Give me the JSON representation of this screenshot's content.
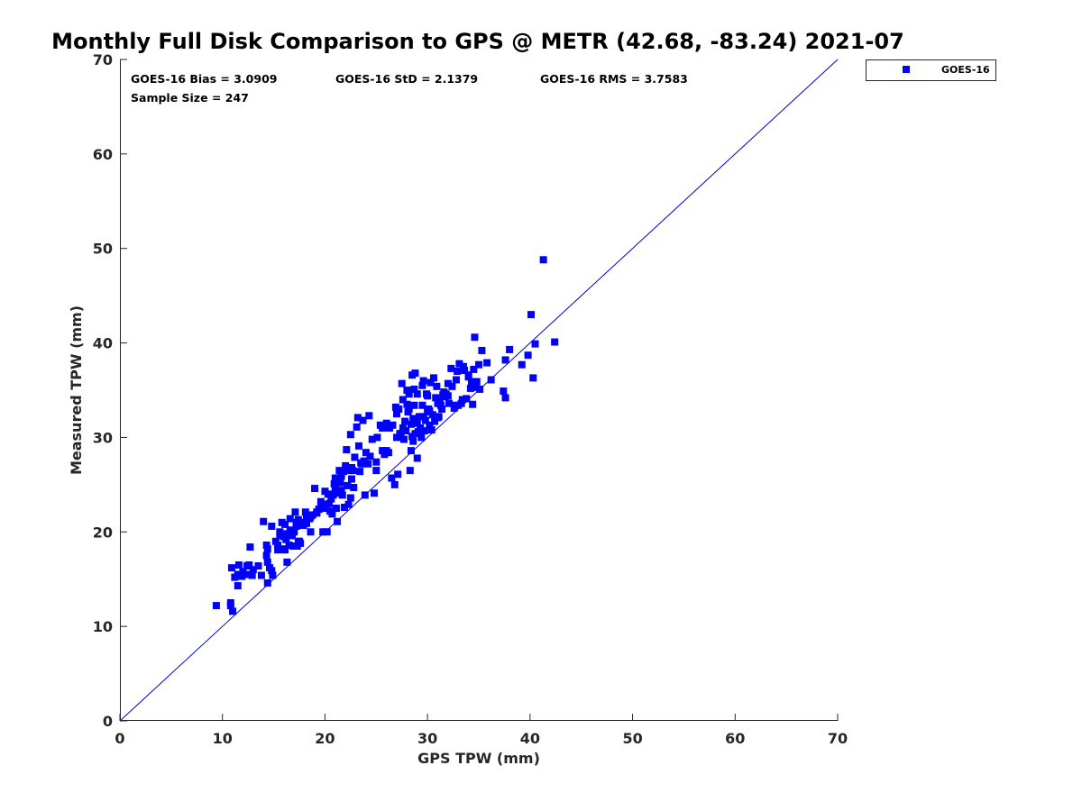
{
  "chart_data": {
    "type": "scatter",
    "title": "Monthly Full Disk Comparison to GPS @ METR (42.68, -83.24) 2021-07",
    "xlabel": "GPS TPW (mm)",
    "ylabel": "Measured TPW (mm)",
    "xlim": [
      0,
      70
    ],
    "ylim": [
      0,
      70
    ],
    "xticks": [
      "0",
      "10",
      "20",
      "30",
      "40",
      "50",
      "60",
      "70"
    ],
    "yticks": [
      "0",
      "10",
      "20",
      "30",
      "40",
      "50",
      "60",
      "70"
    ],
    "grid": false,
    "legend_position": "outside-top-right",
    "reference_line": {
      "x": [
        0,
        70
      ],
      "y": [
        0,
        70
      ],
      "color": "#0000cc"
    },
    "stats": {
      "bias": "GOES-16 Bias = 3.0909",
      "std": "GOES-16 StD = 2.1379",
      "rms": "GOES-16 RMS = 3.7583",
      "sample": "Sample Size = 247"
    },
    "series": [
      {
        "name": "GOES-16",
        "color": "#0000ff",
        "marker": "square",
        "points": [
          [
            9.4,
            12.2
          ],
          [
            10.8,
            12.5
          ],
          [
            10.8,
            12.2
          ],
          [
            11.0,
            11.6
          ],
          [
            11.5,
            14.3
          ],
          [
            11.5,
            15.5
          ],
          [
            11.6,
            16.5
          ],
          [
            11.9,
            15.3
          ],
          [
            10.9,
            16.2
          ],
          [
            12.4,
            16.4
          ],
          [
            12.6,
            16.5
          ],
          [
            12.4,
            15.5
          ],
          [
            12.9,
            15.4
          ],
          [
            12.7,
            18.4
          ],
          [
            13.5,
            16.4
          ],
          [
            13.8,
            15.4
          ],
          [
            14.0,
            21.1
          ],
          [
            14.3,
            17.5
          ],
          [
            14.3,
            18.6
          ],
          [
            14.4,
            18.2
          ],
          [
            14.4,
            16.8
          ],
          [
            14.6,
            16.2
          ],
          [
            14.4,
            14.6
          ],
          [
            14.8,
            15.9
          ],
          [
            14.9,
            15.4
          ],
          [
            14.8,
            20.6
          ],
          [
            15.4,
            18.6
          ],
          [
            15.4,
            18.1
          ],
          [
            15.8,
            18.2
          ],
          [
            15.6,
            20.0
          ],
          [
            15.8,
            21.0
          ],
          [
            16.1,
            20.8
          ],
          [
            16.0,
            19.5
          ],
          [
            16.1,
            18.1
          ],
          [
            16.3,
            19.8
          ],
          [
            16.3,
            16.8
          ],
          [
            16.5,
            18.6
          ],
          [
            16.6,
            21.4
          ],
          [
            16.8,
            19.6
          ],
          [
            16.9,
            18.5
          ],
          [
            17.0,
            20.0
          ],
          [
            17.1,
            22.1
          ],
          [
            17.2,
            21.0
          ],
          [
            17.3,
            18.5
          ],
          [
            17.4,
            21.3
          ],
          [
            17.5,
            19.0
          ],
          [
            17.6,
            18.8
          ],
          [
            17.8,
            20.9
          ],
          [
            17.9,
            20.7
          ],
          [
            18.1,
            22.1
          ],
          [
            18.2,
            21.7
          ],
          [
            18.2,
            20.9
          ],
          [
            18.5,
            21.4
          ],
          [
            18.6,
            20.0
          ],
          [
            18.8,
            21.8
          ],
          [
            19.0,
            24.6
          ],
          [
            19.2,
            22.1
          ],
          [
            19.4,
            22.4
          ],
          [
            19.6,
            22.8
          ],
          [
            19.8,
            22.5
          ],
          [
            19.8,
            20.0
          ],
          [
            20.0,
            24.3
          ],
          [
            20.0,
            22.5
          ],
          [
            20.1,
            22.9
          ],
          [
            20.2,
            20.0
          ],
          [
            20.3,
            24.0
          ],
          [
            20.5,
            22.2
          ],
          [
            20.6,
            23.5
          ],
          [
            20.7,
            21.9
          ],
          [
            20.8,
            23.9
          ],
          [
            20.9,
            25.1
          ],
          [
            21.0,
            25.7
          ],
          [
            21.1,
            22.5
          ],
          [
            21.2,
            21.1
          ],
          [
            21.3,
            24.1
          ],
          [
            21.4,
            26.5
          ],
          [
            21.5,
            25.2
          ],
          [
            21.6,
            25.9
          ],
          [
            21.7,
            23.9
          ],
          [
            21.8,
            26.4
          ],
          [
            21.9,
            22.6
          ],
          [
            22.0,
            27.0
          ],
          [
            22.1,
            28.7
          ],
          [
            22.2,
            24.9
          ],
          [
            22.3,
            22.9
          ],
          [
            22.4,
            26.5
          ],
          [
            22.5,
            23.6
          ],
          [
            22.5,
            30.3
          ],
          [
            22.6,
            26.8
          ],
          [
            22.7,
            26.5
          ],
          [
            22.8,
            24.7
          ],
          [
            22.9,
            27.9
          ],
          [
            23.1,
            31.1
          ],
          [
            23.2,
            32.1
          ],
          [
            23.3,
            29.1
          ],
          [
            23.5,
            27.3
          ],
          [
            23.6,
            27.2
          ],
          [
            23.7,
            31.8
          ],
          [
            23.8,
            27.5
          ],
          [
            23.9,
            23.9
          ],
          [
            24.0,
            28.4
          ],
          [
            24.3,
            32.3
          ],
          [
            24.6,
            29.8
          ],
          [
            24.8,
            24.1
          ],
          [
            25.0,
            26.5
          ],
          [
            25.0,
            27.4
          ],
          [
            25.1,
            30.0
          ],
          [
            25.4,
            31.3
          ],
          [
            25.6,
            31.0
          ],
          [
            25.8,
            28.2
          ],
          [
            26.0,
            31.5
          ],
          [
            26.1,
            31.2
          ],
          [
            26.2,
            28.4
          ],
          [
            26.3,
            31.0
          ],
          [
            26.5,
            25.7
          ],
          [
            26.6,
            31.3
          ],
          [
            26.8,
            25.0
          ],
          [
            26.9,
            33.2
          ],
          [
            27.0,
            30.0
          ],
          [
            27.0,
            32.5
          ],
          [
            27.1,
            26.1
          ],
          [
            27.2,
            33.0
          ],
          [
            27.3,
            30.4
          ],
          [
            27.5,
            35.7
          ],
          [
            27.6,
            31.0
          ],
          [
            27.7,
            29.8
          ],
          [
            27.8,
            31.7
          ],
          [
            27.9,
            30.7
          ],
          [
            28.0,
            33.5
          ],
          [
            28.0,
            35.0
          ],
          [
            28.1,
            32.7
          ],
          [
            28.2,
            34.6
          ],
          [
            28.3,
            26.5
          ],
          [
            28.4,
            28.6
          ],
          [
            28.4,
            31.4
          ],
          [
            28.5,
            36.6
          ],
          [
            28.5,
            30.1
          ],
          [
            28.6,
            32.0
          ],
          [
            28.7,
            33.4
          ],
          [
            28.7,
            35.1
          ],
          [
            28.8,
            30.4
          ],
          [
            28.8,
            36.8
          ],
          [
            28.9,
            31.5
          ],
          [
            29.0,
            27.8
          ],
          [
            29.0,
            31.7
          ],
          [
            29.1,
            30.6
          ],
          [
            29.2,
            32.2
          ],
          [
            29.3,
            31.0
          ],
          [
            29.4,
            30.0
          ],
          [
            29.5,
            35.5
          ],
          [
            29.5,
            33.4
          ],
          [
            29.6,
            36.0
          ],
          [
            29.7,
            30.7
          ],
          [
            29.8,
            31.8
          ],
          [
            29.9,
            34.6
          ],
          [
            30.0,
            32.7
          ],
          [
            30.1,
            33.0
          ],
          [
            30.2,
            31.3
          ],
          [
            30.3,
            35.8
          ],
          [
            30.4,
            30.8
          ],
          [
            30.5,
            32.4
          ],
          [
            30.6,
            36.3
          ],
          [
            30.7,
            31.7
          ],
          [
            30.8,
            34.2
          ],
          [
            30.9,
            35.4
          ],
          [
            31.0,
            33.6
          ],
          [
            31.0,
            32.1
          ],
          [
            31.1,
            32.2
          ],
          [
            31.3,
            33.4
          ],
          [
            31.4,
            33.0
          ],
          [
            31.5,
            34.5
          ],
          [
            31.6,
            34.8
          ],
          [
            31.7,
            34.3
          ],
          [
            31.8,
            34.6
          ],
          [
            32.0,
            35.7
          ],
          [
            32.1,
            33.6
          ],
          [
            32.3,
            37.3
          ],
          [
            32.4,
            35.4
          ],
          [
            32.6,
            33.1
          ],
          [
            32.7,
            33.4
          ],
          [
            32.8,
            36.1
          ],
          [
            32.9,
            37.0
          ],
          [
            33.0,
            33.4
          ],
          [
            33.1,
            37.8
          ],
          [
            33.3,
            33.6
          ],
          [
            33.5,
            37.5
          ],
          [
            33.6,
            37.1
          ],
          [
            33.8,
            34.1
          ],
          [
            34.0,
            36.4
          ],
          [
            34.2,
            35.2
          ],
          [
            34.3,
            35.9
          ],
          [
            34.4,
            33.5
          ],
          [
            34.5,
            37.2
          ],
          [
            34.6,
            40.6
          ],
          [
            34.7,
            35.3
          ],
          [
            34.8,
            35.9
          ],
          [
            35.0,
            37.7
          ],
          [
            35.1,
            35.1
          ],
          [
            35.3,
            39.2
          ],
          [
            35.8,
            37.9
          ],
          [
            36.2,
            36.1
          ],
          [
            37.4,
            34.9
          ],
          [
            37.6,
            38.2
          ],
          [
            37.6,
            34.2
          ],
          [
            38.0,
            39.3
          ],
          [
            39.2,
            37.7
          ],
          [
            39.8,
            38.7
          ],
          [
            40.1,
            43.0
          ],
          [
            40.3,
            36.3
          ],
          [
            40.5,
            39.9
          ],
          [
            41.3,
            48.8
          ],
          [
            42.4,
            40.1
          ],
          [
            11.2,
            15.2
          ],
          [
            12.0,
            15.8
          ],
          [
            13.0,
            16.0
          ],
          [
            15.2,
            19.0
          ],
          [
            16.2,
            19.2
          ],
          [
            17.4,
            19.0
          ],
          [
            18.0,
            21.0
          ],
          [
            19.2,
            22.0
          ],
          [
            20.4,
            23.0
          ],
          [
            21.6,
            24.4
          ],
          [
            22.6,
            25.6
          ],
          [
            23.4,
            26.4
          ],
          [
            24.4,
            28.0
          ],
          [
            26.0,
            28.6
          ],
          [
            27.4,
            30.4
          ],
          [
            28.6,
            29.6
          ],
          [
            29.6,
            32.2
          ],
          [
            30.2,
            32.8
          ],
          [
            31.2,
            34.0
          ],
          [
            32.0,
            34.4
          ],
          [
            33.4,
            34.0
          ],
          [
            34.0,
            36.6
          ],
          [
            27.6,
            34.0
          ],
          [
            28.2,
            33.0
          ],
          [
            29.0,
            34.6
          ],
          [
            30.0,
            34.4
          ],
          [
            25.6,
            28.6
          ],
          [
            24.2,
            27.2
          ],
          [
            22.0,
            26.6
          ],
          [
            21.0,
            24.6
          ],
          [
            19.6,
            23.2
          ],
          [
            18.6,
            21.6
          ],
          [
            17.2,
            20.6
          ],
          [
            16.6,
            20.2
          ],
          [
            15.6,
            19.6
          ]
        ]
      }
    ]
  }
}
